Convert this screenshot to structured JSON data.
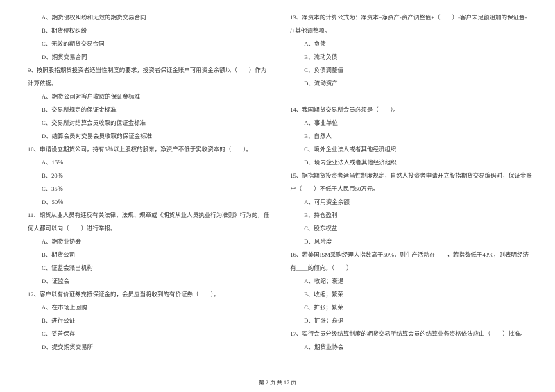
{
  "leftColumn": [
    {
      "text": "A、期货侵权纠纷和无效的期货交易合同",
      "indent": 1
    },
    {
      "text": "B、期货侵权纠纷",
      "indent": 1
    },
    {
      "text": "C、无效的期货交易合同",
      "indent": 1
    },
    {
      "text": "D、期货交易合同",
      "indent": 1
    },
    {
      "text": "9、按照股指期货投资者适当性制度的要求，投资者保证金账户可用资金余额以（　　）作为",
      "indent": 2
    },
    {
      "text": "计算依据。",
      "indent": 2
    },
    {
      "text": "A、期货公司对客户收取的保证金标准",
      "indent": 1
    },
    {
      "text": "B、交易所规定的保证金标准",
      "indent": 1
    },
    {
      "text": "C、交易所对结算会员收取的保证金标准",
      "indent": 1
    },
    {
      "text": "D、结算会员对交易会员收取的保证金标准",
      "indent": 1
    },
    {
      "text": "10、申请设立期货公司，持有5％以上股权的股东，净资产不低于实收资本的（　　）。",
      "indent": 2
    },
    {
      "text": "A、15％",
      "indent": 1
    },
    {
      "text": "B、20％",
      "indent": 1
    },
    {
      "text": "C、35％",
      "indent": 1
    },
    {
      "text": "D、50％",
      "indent": 1
    },
    {
      "text": "11、期货从业人员有违反有关法律、法规、规章或《期货从业人员执业行为准则》行为的，任",
      "indent": 2
    },
    {
      "text": "何人都可以向（　　）进行举报。",
      "indent": 2
    },
    {
      "text": "A、期货业协会",
      "indent": 1
    },
    {
      "text": "B、期货公司",
      "indent": 1
    },
    {
      "text": "C、证监会派出机构",
      "indent": 1
    },
    {
      "text": "D、证监会",
      "indent": 1
    },
    {
      "text": "12、客户以有价证券充抵保证金的，会员应当将收到的有价证券（　　）。",
      "indent": 2
    },
    {
      "text": "A、在市场上回购",
      "indent": 1
    },
    {
      "text": "B、进行公证",
      "indent": 1
    },
    {
      "text": "C、妥善保存",
      "indent": 1
    },
    {
      "text": "D、提交期货交易所",
      "indent": 1
    }
  ],
  "rightColumn": [
    {
      "text": "13、净资本的计算公式为：净资本=净资产-资产调整值+（　　）-客户未足额追加的保证金-",
      "indent": 2
    },
    {
      "text": "/+其他调整项。",
      "indent": 2
    },
    {
      "text": "A、负债",
      "indent": 1
    },
    {
      "text": "B、流动负债",
      "indent": 1
    },
    {
      "text": "C、负债调整值",
      "indent": 1
    },
    {
      "text": "D、流动资产",
      "indent": 1
    },
    {
      "text": "",
      "indent": 2
    },
    {
      "text": "14、我国期货交易所会员必须是（　　）。",
      "indent": 2
    },
    {
      "text": "A、事业单位",
      "indent": 1
    },
    {
      "text": "B、自然人",
      "indent": 1
    },
    {
      "text": "C、境外企业法人或者其他经济组织",
      "indent": 1
    },
    {
      "text": "D、境内企业法人或者其他经济组织",
      "indent": 1
    },
    {
      "text": "15、据指期货投资者适当性制度规定，自然人投资者申请开立股指期货交易编码时，保证金账",
      "indent": 2
    },
    {
      "text": "户（　　）不低于人民币50万元。",
      "indent": 2
    },
    {
      "text": "A、可用资金余额",
      "indent": 1
    },
    {
      "text": "B、持仓盈利",
      "indent": 1
    },
    {
      "text": "C、股东权益",
      "indent": 1
    },
    {
      "text": "D、风险度",
      "indent": 1
    },
    {
      "text": "16、若美国ISM采购经理人指数高于50%，则生产活动在____，若指数低于43%，则表明经济",
      "indent": 2
    },
    {
      "text": "有____的倾向。（　　）",
      "indent": 2
    },
    {
      "text": "A、收缩；衰退",
      "indent": 1
    },
    {
      "text": "B、收缩；繁荣",
      "indent": 1
    },
    {
      "text": "C、扩张；繁荣",
      "indent": 1
    },
    {
      "text": "D、扩张；衰退",
      "indent": 1
    },
    {
      "text": "17、实行会员分级结算制度的期货交易所结算会员的结算业务资格依法应由（　　）批准。",
      "indent": 2
    },
    {
      "text": "A、期货业协会",
      "indent": 1
    }
  ],
  "footer": "第 2 页 共 17 页"
}
